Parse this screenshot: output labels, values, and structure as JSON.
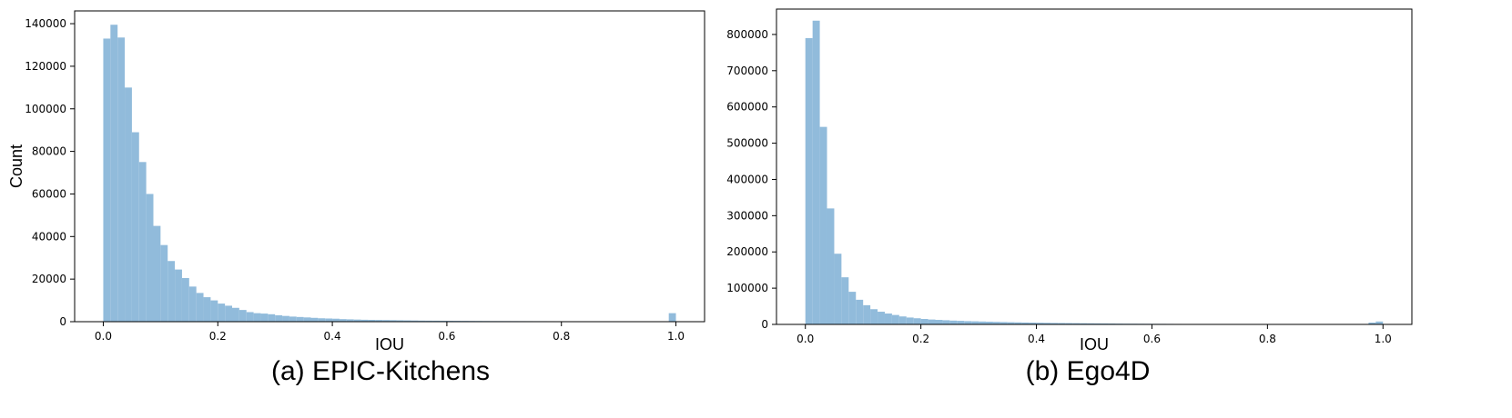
{
  "colors": {
    "bar": "#91bbdb",
    "axes": "#000000"
  },
  "chart_data": [
    {
      "type": "bar",
      "caption": "(a) EPIC-Kitchens",
      "xlabel": "IOU",
      "ylabel": "Count",
      "xlim": [
        -0.05,
        1.05
      ],
      "ylim": [
        0,
        146000
      ],
      "xticks": [
        0.0,
        0.2,
        0.4,
        0.6,
        0.8,
        1.0
      ],
      "xtick_labels": [
        "0.0",
        "0.2",
        "0.4",
        "0.6",
        "0.8",
        "1.0"
      ],
      "yticks": [
        0,
        20000,
        40000,
        60000,
        80000,
        100000,
        120000,
        140000
      ],
      "ytick_labels": [
        "0",
        "20000",
        "40000",
        "60000",
        "80000",
        "100000",
        "120000",
        "140000"
      ],
      "bin_start": 0.0,
      "bin_width": 0.0125,
      "values": [
        133000,
        139500,
        133500,
        110000,
        89000,
        75000,
        60000,
        45000,
        36000,
        28500,
        24500,
        20500,
        16500,
        13500,
        11500,
        10000,
        8500,
        7500,
        6500,
        5500,
        4500,
        4000,
        3800,
        3500,
        3000,
        2700,
        2400,
        2200,
        2000,
        1800,
        1600,
        1500,
        1400,
        1200,
        1100,
        1000,
        900,
        850,
        800,
        750,
        700,
        650,
        600,
        550,
        500,
        480,
        460,
        440,
        420,
        400,
        380,
        360,
        340,
        320,
        300,
        290,
        280,
        270,
        260,
        250,
        240,
        230,
        220,
        210,
        200,
        200,
        200,
        200,
        200,
        200,
        200,
        200,
        200,
        200,
        200,
        200,
        200,
        200,
        200,
        4000
      ]
    },
    {
      "type": "bar",
      "caption": "(b) Ego4D",
      "xlabel": "IOU",
      "ylabel": "",
      "xlim": [
        -0.05,
        1.05
      ],
      "ylim": [
        0,
        870000
      ],
      "xticks": [
        0.0,
        0.2,
        0.4,
        0.6,
        0.8,
        1.0
      ],
      "xtick_labels": [
        "0.0",
        "0.2",
        "0.4",
        "0.6",
        "0.8",
        "1.0"
      ],
      "yticks": [
        0,
        100000,
        200000,
        300000,
        400000,
        500000,
        600000,
        700000,
        800000
      ],
      "ytick_labels": [
        "0",
        "100000",
        "200000",
        "300000",
        "400000",
        "500000",
        "600000",
        "700000",
        "800000"
      ],
      "bin_start": 0.0,
      "bin_width": 0.0125,
      "values": [
        790000,
        838000,
        545000,
        320000,
        195000,
        130000,
        90000,
        68000,
        53000,
        42000,
        35000,
        30000,
        26000,
        22000,
        19000,
        17000,
        15000,
        13500,
        12500,
        11500,
        10500,
        9800,
        9000,
        8500,
        8000,
        7500,
        7000,
        6500,
        6000,
        5600,
        5200,
        4900,
        4600,
        4300,
        4000,
        3800,
        3600,
        3400,
        3200,
        3000,
        2800,
        2600,
        2400,
        2200,
        2000,
        1900,
        1800,
        1700,
        1600,
        1500,
        1400,
        1300,
        1200,
        1100,
        1000,
        1000,
        1000,
        1000,
        1000,
        1000,
        1000,
        1000,
        1000,
        1000,
        1000,
        1000,
        1000,
        1000,
        1000,
        1000,
        1000,
        1000,
        1000,
        1000,
        1000,
        1000,
        1000,
        1000,
        5000,
        8000
      ]
    }
  ]
}
